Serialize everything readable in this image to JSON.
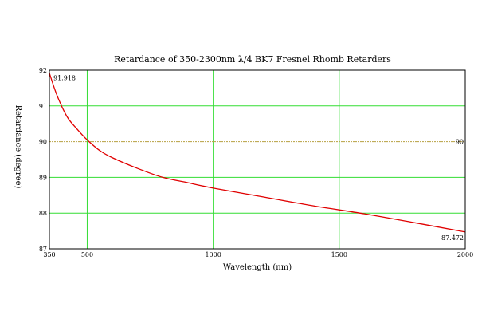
{
  "chart_data": {
    "type": "line",
    "title": "Retardance of 350-2300nm λ/4 BK7 Fresnel Rhomb Retarders",
    "xlabel": "Wavelength (nm)",
    "ylabel": "Retardance (degree)",
    "xlim": [
      350,
      2000
    ],
    "ylim": [
      87,
      92
    ],
    "xticks": [
      350,
      500,
      1000,
      1500,
      2000
    ],
    "yticks": [
      87,
      88,
      89,
      90,
      91,
      92
    ],
    "grid": true,
    "colors": {
      "curve": "#e00000",
      "grid": "#33dd33",
      "reference": "#b8a040"
    },
    "series": [
      {
        "x": [
          350,
          380,
          420,
          460,
          500,
          550,
          600,
          700,
          800,
          900,
          1000,
          1200,
          1400,
          1600,
          1800,
          2000
        ],
        "values": [
          91.918,
          91.3,
          90.7,
          90.35,
          90.05,
          89.75,
          89.55,
          89.25,
          89.0,
          88.85,
          88.7,
          88.45,
          88.2,
          87.98,
          87.73,
          87.472
        ]
      }
    ],
    "reference_line": {
      "y": 90,
      "label": "90"
    },
    "annotations": [
      {
        "x": 350,
        "y": 91.918,
        "label": "91.918"
      },
      {
        "x": 2000,
        "y": 87.472,
        "label": "87.472"
      }
    ]
  }
}
